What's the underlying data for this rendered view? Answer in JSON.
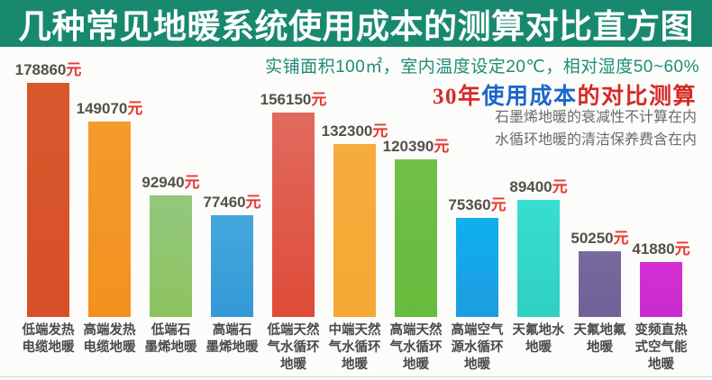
{
  "header": {
    "title": "几种常见地暖系统使用成本的测算对比直方图",
    "bg_color": "#18896e",
    "text_color": "#ffffff"
  },
  "conditions": {
    "text": "实铺面积100㎡，室内温度设定20℃，相对湿度50~60%",
    "color": "#1f8c77"
  },
  "headline": {
    "segments": [
      {
        "text": "30年",
        "color": "#d42b28"
      },
      {
        "text": "使用成本",
        "color": "#1b66c9"
      },
      {
        "text": "的对比测算",
        "color": "#d42b28"
      }
    ]
  },
  "notes": {
    "lines": [
      "石墨烯地暖的衰减性不计算在内",
      "水循环地暖的清洁保养费含在内"
    ],
    "color": "#6a6a6a"
  },
  "chart_data": {
    "type": "bar",
    "title": "几种常见地暖系统使用成本的测算对比直方图",
    "subtitle": "30年使用成本的对比测算",
    "unit": "元",
    "categories": [
      "低端发热电缆地暖",
      "高端发热电缆地暖",
      "低端石墨烯地暖",
      "高端石墨烯地暖",
      "低端天然气水循环地暖",
      "中端天然气水循环地暖",
      "高端天然气水循环地暖",
      "高端空气源水循环地暖",
      "天氟地水地暖",
      "天氟地氟地暖",
      "变频直热式空气能地暖"
    ],
    "category_lines": [
      [
        "低端发热",
        "电缆地暖"
      ],
      [
        "高端发热",
        "电缆地暖"
      ],
      [
        "低端石",
        "墨烯地暖"
      ],
      [
        "高端石",
        "墨烯地暖"
      ],
      [
        "低端天然",
        "气水循环",
        "地暖"
      ],
      [
        "中端天然",
        "气水循环",
        "地暖"
      ],
      [
        "高端天然",
        "气水循环",
        "地暖"
      ],
      [
        "高端空气",
        "源水循环",
        "地暖"
      ],
      [
        "天氟地水",
        "地暖"
      ],
      [
        "天氟地氟",
        "地暖"
      ],
      [
        "变频直热",
        "式空气能",
        "地暖"
      ]
    ],
    "values": [
      178860,
      149070,
      92940,
      77460,
      156150,
      132300,
      120390,
      75360,
      89400,
      50250,
      41880
    ],
    "bar_colors_top": [
      "#d8582c",
      "#f59b2b",
      "#93c77e",
      "#45a8dc",
      "#e16a5e",
      "#f6ac3d",
      "#70c046",
      "#0fb0ec",
      "#38ded0",
      "#77699d",
      "#d42fd4"
    ],
    "bar_colors_bottom": [
      "#d84f28",
      "#f29120",
      "#8dc45f",
      "#3399d6",
      "#df4b38",
      "#f5a833",
      "#67bb3d",
      "#1e9ce2",
      "#2fd0c4",
      "#706199",
      "#c92bd0"
    ],
    "value_label_color": "#56504b",
    "unit_color": "#e8382e",
    "xlabel": "",
    "ylabel": "",
    "ylim": [
      0,
      185000
    ],
    "grid": false,
    "legend": false,
    "value_labels_shown": true
  }
}
